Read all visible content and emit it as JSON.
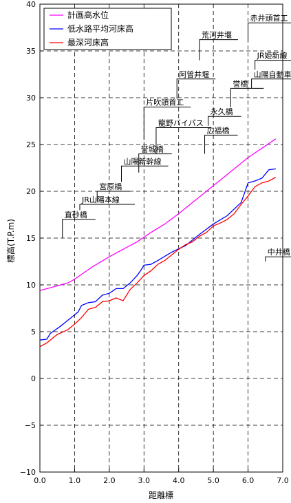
{
  "chart_data": {
    "type": "line",
    "xlabel": "距離標",
    "ylabel": "標高(T.P.m)",
    "xlim": [
      0.0,
      7.0
    ],
    "ylim": [
      -10,
      40
    ],
    "x_ticks": [
      "0.0",
      "1.0",
      "2.0",
      "3.0",
      "4.0",
      "5.0",
      "6.0",
      "7.0"
    ],
    "y_ticks": [
      "−10",
      "−5",
      "0",
      "5",
      "10",
      "15",
      "20",
      "25",
      "30",
      "35",
      "40"
    ],
    "grid": "dashed",
    "legend_position": "top-left",
    "series": [
      {
        "name": "計画高水位",
        "color": "#ff00ff",
        "points": [
          [
            0.0,
            9.4
          ],
          [
            0.4,
            9.8
          ],
          [
            0.8,
            10.2
          ],
          [
            1.0,
            10.6
          ],
          [
            1.5,
            11.9
          ],
          [
            2.0,
            13.0
          ],
          [
            2.4,
            13.8
          ],
          [
            2.8,
            14.6
          ],
          [
            3.2,
            15.6
          ],
          [
            3.6,
            16.5
          ],
          [
            4.0,
            17.6
          ],
          [
            4.4,
            18.8
          ],
          [
            4.8,
            20.0
          ],
          [
            5.2,
            21.2
          ],
          [
            5.6,
            22.4
          ],
          [
            6.0,
            23.6
          ],
          [
            6.4,
            24.6
          ],
          [
            6.8,
            25.6
          ]
        ]
      },
      {
        "name": "低水路平均河床高",
        "color": "#0000ff",
        "points": [
          [
            0.0,
            4.1
          ],
          [
            0.2,
            4.2
          ],
          [
            0.3,
            4.8
          ],
          [
            0.6,
            5.6
          ],
          [
            0.9,
            6.5
          ],
          [
            1.1,
            7.1
          ],
          [
            1.2,
            7.8
          ],
          [
            1.4,
            8.1
          ],
          [
            1.6,
            8.2
          ],
          [
            1.8,
            8.9
          ],
          [
            2.0,
            9.1
          ],
          [
            2.2,
            9.6
          ],
          [
            2.4,
            9.6
          ],
          [
            2.6,
            10.2
          ],
          [
            2.8,
            11.0
          ],
          [
            2.9,
            11.5
          ],
          [
            3.0,
            12.1
          ],
          [
            3.2,
            12.2
          ],
          [
            3.4,
            12.6
          ],
          [
            3.8,
            13.5
          ],
          [
            4.2,
            14.2
          ],
          [
            4.6,
            15.4
          ],
          [
            5.0,
            16.5
          ],
          [
            5.4,
            17.4
          ],
          [
            5.8,
            18.8
          ],
          [
            6.0,
            20.9
          ],
          [
            6.2,
            21.1
          ],
          [
            6.4,
            21.4
          ],
          [
            6.6,
            22.3
          ],
          [
            6.8,
            22.4
          ]
        ]
      },
      {
        "name": "最深河床高",
        "color": "#ff0000",
        "points": [
          [
            0.0,
            3.4
          ],
          [
            0.2,
            3.8
          ],
          [
            0.5,
            4.7
          ],
          [
            0.8,
            5.2
          ],
          [
            1.0,
            5.8
          ],
          [
            1.2,
            6.5
          ],
          [
            1.4,
            7.4
          ],
          [
            1.6,
            7.6
          ],
          [
            1.8,
            8.2
          ],
          [
            2.0,
            8.3
          ],
          [
            2.2,
            8.6
          ],
          [
            2.4,
            8.3
          ],
          [
            2.6,
            9.5
          ],
          [
            2.8,
            10.2
          ],
          [
            3.0,
            11.0
          ],
          [
            3.2,
            11.5
          ],
          [
            3.4,
            12.2
          ],
          [
            3.6,
            12.6
          ],
          [
            3.8,
            13.2
          ],
          [
            4.0,
            13.8
          ],
          [
            4.2,
            14.3
          ],
          [
            4.4,
            14.6
          ],
          [
            4.6,
            15.2
          ],
          [
            4.8,
            15.6
          ],
          [
            5.0,
            16.3
          ],
          [
            5.2,
            16.6
          ],
          [
            5.4,
            17.0
          ],
          [
            5.6,
            17.6
          ],
          [
            5.8,
            18.6
          ],
          [
            6.0,
            19.5
          ],
          [
            6.2,
            20.5
          ],
          [
            6.4,
            20.9
          ],
          [
            6.6,
            21.1
          ],
          [
            6.8,
            21.5
          ]
        ]
      }
    ],
    "structures": [
      {
        "label": "直砂橋",
        "x": 0.65,
        "y": 17.0,
        "bottom": 15.0
      },
      {
        "label": "JR山陽本線",
        "x": 1.15,
        "y": 18.6,
        "bottom": 18.0
      },
      {
        "label": "宮原橋",
        "x": 1.65,
        "y": 20.0,
        "bottom": 18.9
      },
      {
        "label": "山陽新幹線",
        "x": 2.35,
        "y": 22.7,
        "bottom": 21.0
      },
      {
        "label": "誉城橋",
        "x": 2.85,
        "y": 24.0,
        "bottom": 22.0
      },
      {
        "label": "龍野バイパス",
        "x": 3.35,
        "y": 26.8,
        "bottom": 24.0
      },
      {
        "label": "片吹頭首工",
        "x": 3.0,
        "y": 29.0,
        "bottom": 25.5
      },
      {
        "label": "阿曽井堰",
        "x": 3.95,
        "y": 32.0,
        "bottom": 29.9
      },
      {
        "label": "荒河井堰",
        "x": 4.6,
        "y": 36.2,
        "bottom": 34.0
      },
      {
        "label": "永久橋",
        "x": 4.85,
        "y": 28.0,
        "bottom": 27.0
      },
      {
        "label": "広福橋",
        "x": 4.75,
        "y": 26.0,
        "bottom": 24.0
      },
      {
        "label": "誉橋",
        "x": 5.5,
        "y": 31.0,
        "bottom": 29.0
      },
      {
        "label": "山陽自動車道",
        "x": 6.1,
        "y": 32.0,
        "bottom": 31.0
      },
      {
        "label": "JR姫新線",
        "x": 6.2,
        "y": 34.0,
        "bottom": 33.0
      },
      {
        "label": "赤井頭首工",
        "x": 6.0,
        "y": 38.0,
        "bottom": 36.0
      },
      {
        "label": "中井橋",
        "x": 6.5,
        "y": 13.0,
        "bottom": 12.5
      }
    ]
  }
}
